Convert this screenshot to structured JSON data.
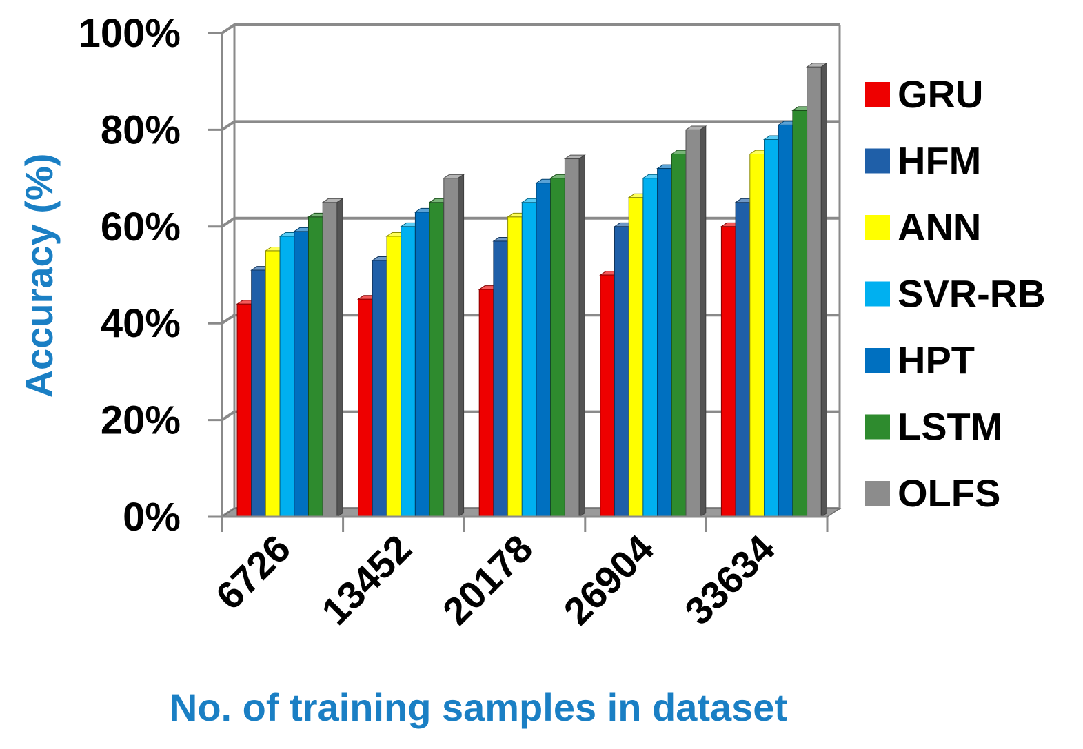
{
  "chart_data": {
    "type": "bar",
    "style": "3d-clustered",
    "xlabel": "No. of training samples in dataset",
    "ylabel": "Accuracy (%)",
    "ylim": [
      0,
      100
    ],
    "yticks": [
      "0%",
      "20%",
      "40%",
      "60%",
      "80%",
      "100%"
    ],
    "grid": true,
    "legend_position": "right",
    "categories": [
      "6726",
      "13452",
      "20178",
      "26904",
      "33634"
    ],
    "series": [
      {
        "name": "GRU",
        "color": "#ee0000",
        "values": [
          44,
          45,
          47,
          50,
          60
        ]
      },
      {
        "name": "HFM",
        "color": "#1f5fa8",
        "values": [
          51,
          53,
          57,
          60,
          65
        ]
      },
      {
        "name": "ANN",
        "color": "#ffff00",
        "values": [
          55,
          58,
          62,
          66,
          75
        ]
      },
      {
        "name": "SVR-RB",
        "color": "#00b0f0",
        "values": [
          58,
          60,
          65,
          70,
          78
        ]
      },
      {
        "name": "HPT",
        "color": "#0070c0",
        "values": [
          59,
          63,
          69,
          72,
          81
        ]
      },
      {
        "name": "LSTM",
        "color": "#2e8b2e",
        "values": [
          62,
          65,
          70,
          75,
          84
        ]
      },
      {
        "name": "OLFS",
        "color": "#8c8c8c",
        "values": [
          65,
          70,
          74,
          80,
          93
        ]
      }
    ]
  }
}
